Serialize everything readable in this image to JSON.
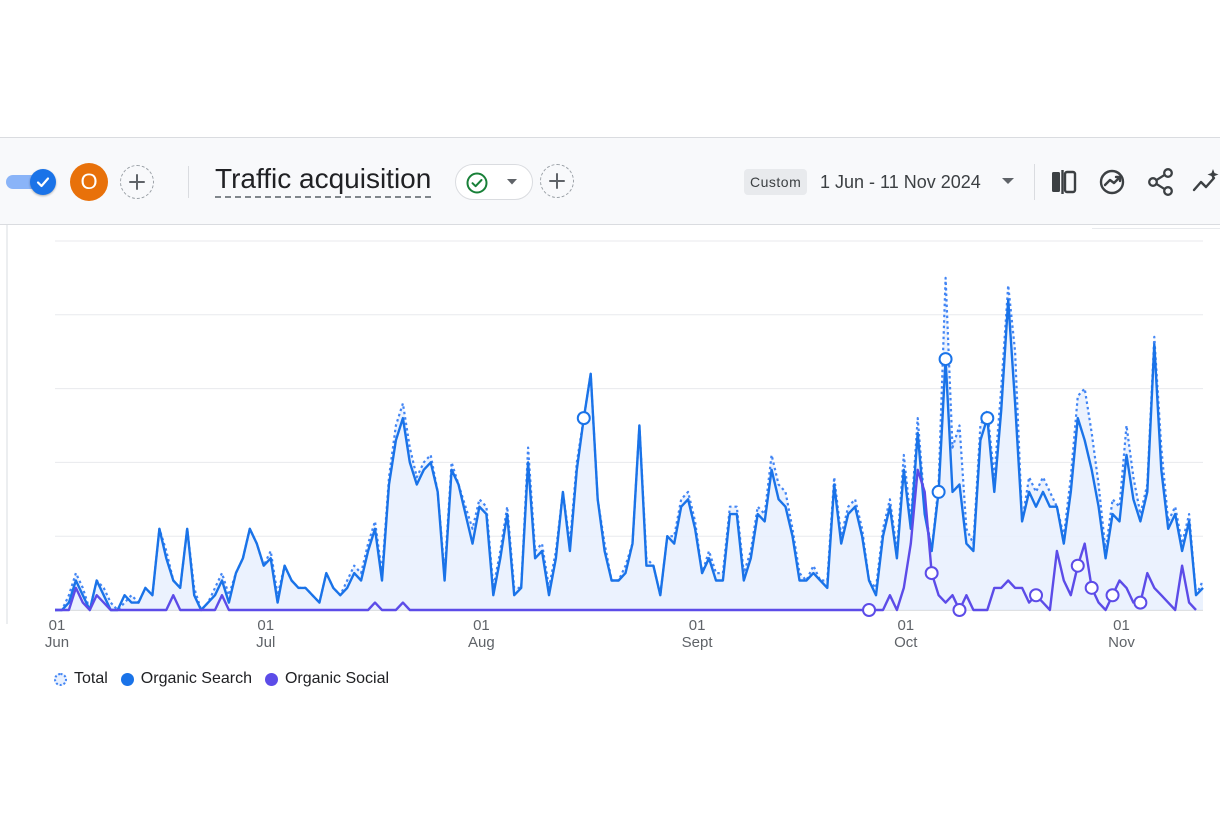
{
  "toolbar": {
    "avatar_letter": "O",
    "title": "Traffic acquisition",
    "custom_label": "Custom",
    "date_range": "1 Jun - 11 Nov 2024"
  },
  "colors": {
    "organic_search": "#1a73e8",
    "organic_social": "#5c4ce8",
    "total": "#4285f4",
    "area_fill": "#e8f0fe",
    "avatar": "#e8710a",
    "status_ok": "#188038"
  },
  "icons": [
    "toggle-check-icon",
    "plus-icon",
    "check-circle-icon",
    "caret-down-icon",
    "compare-icon",
    "insights-icon",
    "share-icon",
    "sparkle-trend-icon"
  ],
  "chart_data": {
    "type": "line",
    "x_tick_labels": [
      {
        "day": "01",
        "month": "Jun",
        "index": 0
      },
      {
        "day": "01",
        "month": "Jul",
        "index": 30
      },
      {
        "day": "01",
        "month": "Aug",
        "index": 61
      },
      {
        "day": "01",
        "month": "Sept",
        "index": 92
      },
      {
        "day": "01",
        "month": "Oct",
        "index": 122
      },
      {
        "day": "01",
        "month": "Nov",
        "index": 153
      }
    ],
    "ylim": [
      0,
      5
    ],
    "grid": true,
    "legend": {
      "position": "bottom-left"
    },
    "series": [
      {
        "name": "Total",
        "values": [
          0,
          0,
          0.2,
          0.5,
          0.3,
          0,
          0.4,
          0.3,
          0.1,
          0,
          0.1,
          0.2,
          0.1,
          0.3,
          0.2,
          1.1,
          0.8,
          0.4,
          0.3,
          1.1,
          0.3,
          0,
          0.1,
          0.3,
          0.5,
          0.2,
          0.5,
          0.7,
          1.1,
          0.9,
          0.6,
          0.8,
          0.2,
          0.6,
          0.4,
          0.3,
          0.3,
          0.2,
          0.1,
          0.5,
          0.3,
          0.2,
          0.4,
          0.6,
          0.5,
          0.9,
          1.2,
          0.5,
          1.8,
          2.5,
          2.8,
          2.2,
          1.8,
          2.0,
          2.1,
          1.6,
          0.5,
          2.0,
          1.7,
          1.4,
          1.1,
          1.5,
          1.4,
          0.3,
          0.8,
          1.4,
          0.3,
          0.3,
          2.2,
          0.8,
          0.9,
          0.3,
          0.8,
          1.6,
          0.9,
          2.0,
          2.6,
          3.2,
          1.5,
          0.9,
          0.4,
          0.4,
          0.6,
          0.9,
          2.5,
          0.7,
          0.6,
          0.2,
          1.0,
          1.0,
          1.5,
          1.6,
          1.2,
          0.5,
          0.8,
          0.5,
          0.5,
          1.4,
          1.4,
          0.5,
          0.8,
          1.4,
          1.3,
          2.1,
          1.7,
          1.6,
          1.1,
          0.5,
          0.4,
          0.6,
          0.4,
          0.4,
          1.8,
          1.0,
          1.4,
          1.5,
          1.1,
          0.4,
          0.3,
          1.1,
          1.5,
          0.8,
          2.1,
          1.2,
          2.6,
          1.4,
          0.8,
          1.7,
          4.5,
          2.2,
          2.5,
          1.1,
          0.9,
          2.5,
          2.7,
          1.8,
          3.0,
          4.4,
          3.5,
          1.2,
          1.8,
          1.6,
          1.8,
          1.6,
          1.4,
          1.0,
          1.8,
          2.9,
          3.0,
          2.4,
          1.7,
          0.8,
          1.5,
          1.4,
          2.5,
          1.8,
          1.3,
          1.7,
          3.7,
          2.2,
          1.2,
          1.4,
          0.9,
          1.3,
          0.2,
          0.4
        ]
      },
      {
        "name": "Organic Search",
        "values": [
          0,
          0,
          0.1,
          0.4,
          0.2,
          0,
          0.4,
          0.2,
          0,
          0,
          0.2,
          0.1,
          0.1,
          0.3,
          0.2,
          1.1,
          0.7,
          0.4,
          0.3,
          1.1,
          0.2,
          0,
          0.1,
          0.2,
          0.4,
          0.1,
          0.5,
          0.7,
          1.1,
          0.9,
          0.6,
          0.7,
          0.1,
          0.6,
          0.4,
          0.3,
          0.3,
          0.2,
          0.1,
          0.5,
          0.3,
          0.2,
          0.3,
          0.5,
          0.4,
          0.8,
          1.1,
          0.4,
          1.7,
          2.3,
          2.6,
          2.0,
          1.7,
          1.9,
          2.0,
          1.6,
          0.4,
          1.9,
          1.7,
          1.3,
          0.9,
          1.4,
          1.3,
          0.2,
          0.7,
          1.3,
          0.2,
          0.3,
          2.0,
          0.7,
          0.8,
          0.2,
          0.7,
          1.6,
          0.8,
          1.9,
          2.6,
          3.2,
          1.5,
          0.8,
          0.4,
          0.4,
          0.5,
          0.9,
          2.5,
          0.6,
          0.6,
          0.2,
          1.0,
          0.9,
          1.4,
          1.5,
          1.1,
          0.5,
          0.7,
          0.4,
          0.4,
          1.3,
          1.3,
          0.4,
          0.7,
          1.3,
          1.2,
          1.9,
          1.5,
          1.4,
          1.0,
          0.4,
          0.4,
          0.5,
          0.4,
          0.3,
          1.7,
          0.9,
          1.3,
          1.4,
          1.0,
          0.4,
          0.2,
          1.0,
          1.4,
          0.7,
          1.9,
          1.1,
          2.4,
          1.3,
          0.8,
          1.6,
          3.4,
          1.6,
          1.7,
          0.9,
          0.8,
          2.3,
          2.6,
          1.6,
          2.7,
          4.2,
          2.8,
          1.2,
          1.6,
          1.4,
          1.6,
          1.4,
          1.4,
          0.9,
          1.6,
          2.6,
          2.3,
          1.9,
          1.4,
          0.7,
          1.3,
          1.2,
          2.1,
          1.5,
          1.2,
          1.6,
          3.6,
          1.9,
          1.1,
          1.3,
          0.8,
          1.2,
          0.2,
          0.3
        ]
      },
      {
        "name": "Organic Social",
        "values": [
          0,
          0,
          0,
          0.3,
          0.1,
          0,
          0.2,
          0.1,
          0,
          0,
          0,
          0,
          0,
          0,
          0,
          0,
          0,
          0.2,
          0,
          0,
          0,
          0,
          0,
          0,
          0.2,
          0,
          0,
          0,
          0,
          0,
          0,
          0,
          0,
          0,
          0,
          0,
          0,
          0,
          0,
          0,
          0,
          0,
          0,
          0,
          0,
          0,
          0.1,
          0,
          0,
          0,
          0.1,
          0,
          0,
          0,
          0,
          0,
          0,
          0,
          0,
          0,
          0,
          0,
          0,
          0,
          0,
          0,
          0,
          0,
          0,
          0,
          0,
          0,
          0,
          0,
          0,
          0,
          0,
          0,
          0,
          0,
          0,
          0,
          0,
          0,
          0,
          0,
          0,
          0,
          0,
          0,
          0,
          0,
          0,
          0,
          0,
          0,
          0,
          0,
          0,
          0,
          0,
          0,
          0,
          0,
          0,
          0,
          0,
          0,
          0,
          0,
          0,
          0,
          0,
          0,
          0,
          0,
          0,
          0,
          0,
          0,
          0.2,
          0,
          0.3,
          0.9,
          1.9,
          1.6,
          0.5,
          0.2,
          0.1,
          0.2,
          0,
          0.2,
          0,
          0,
          0,
          0.3,
          0.3,
          0.4,
          0.3,
          0.3,
          0.1,
          0.2,
          0.1,
          0,
          0.8,
          0.4,
          0.2,
          0.6,
          0.9,
          0.3,
          0.1,
          0,
          0.2,
          0.4,
          0.3,
          0.1,
          0.1,
          0.5,
          0.3,
          0.2,
          0.1,
          0,
          0.6,
          0.1,
          0
        ]
      }
    ]
  }
}
